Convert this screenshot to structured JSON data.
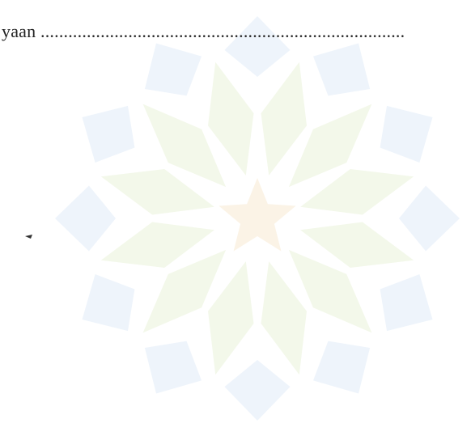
{
  "document": {
    "text": "yaan ..............................................................................."
  }
}
